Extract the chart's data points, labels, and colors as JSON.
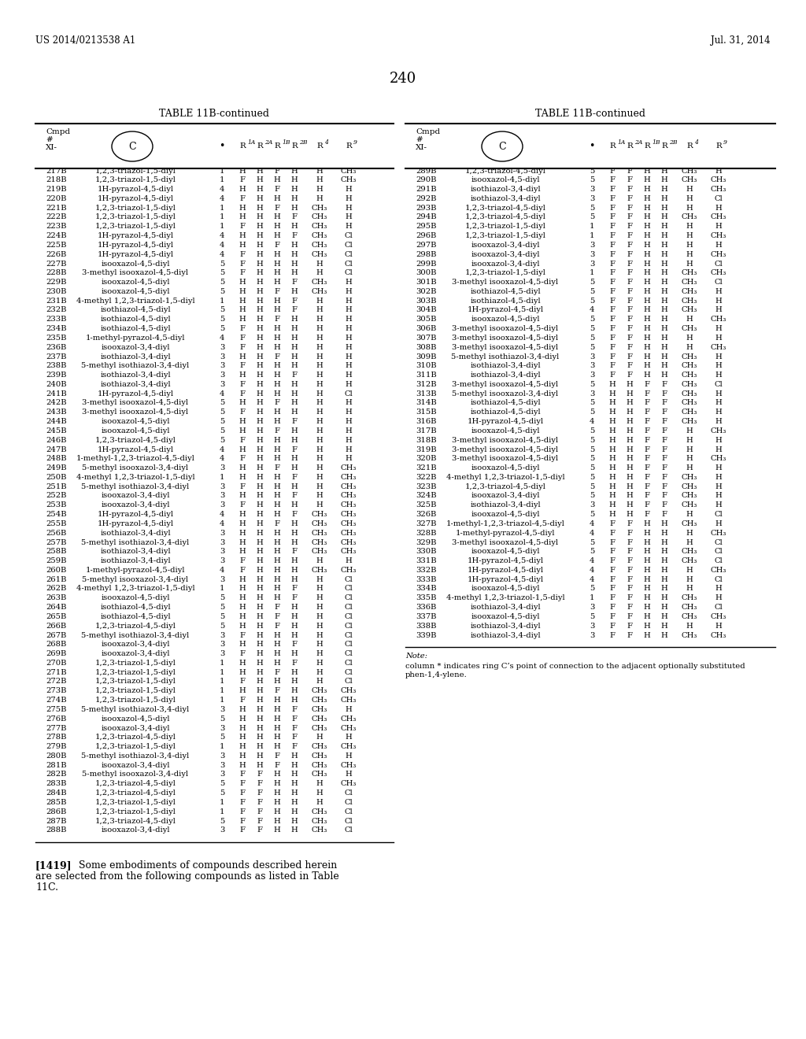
{
  "header_left": "US 2014/0213538 A1",
  "header_right": "Jul. 31, 2014",
  "page_number": "240",
  "table_title": "TABLE 11B-continued",
  "left_table": [
    [
      "217B",
      "1,2,3-triazol-1,5-diyl",
      "1",
      "H",
      "H",
      "F",
      "H",
      "H",
      "CH₃"
    ],
    [
      "218B",
      "1,2,3-triazol-1,5-diyl",
      "1",
      "F",
      "H",
      "H",
      "H",
      "H",
      "CH₃"
    ],
    [
      "219B",
      "1H-pyrazol-4,5-diyl",
      "4",
      "H",
      "H",
      "F",
      "H",
      "H",
      "H"
    ],
    [
      "220B",
      "1H-pyrazol-4,5-diyl",
      "4",
      "F",
      "H",
      "H",
      "H",
      "H",
      "H"
    ],
    [
      "221B",
      "1,2,3-triazol-1,5-diyl",
      "1",
      "H",
      "H",
      "F",
      "H",
      "CH₃",
      "H"
    ],
    [
      "222B",
      "1,2,3-triazol-1,5-diyl",
      "1",
      "H",
      "H",
      "H",
      "F",
      "CH₃",
      "H"
    ],
    [
      "223B",
      "1,2,3-triazol-1,5-diyl",
      "1",
      "F",
      "H",
      "H",
      "H",
      "CH₃",
      "H"
    ],
    [
      "224B",
      "1H-pyrazol-4,5-diyl",
      "4",
      "H",
      "H",
      "H",
      "F",
      "CH₃",
      "Cl"
    ],
    [
      "225B",
      "1H-pyrazol-4,5-diyl",
      "4",
      "H",
      "H",
      "F",
      "H",
      "CH₃",
      "Cl"
    ],
    [
      "226B",
      "1H-pyrazol-4,5-diyl",
      "4",
      "F",
      "H",
      "H",
      "H",
      "CH₃",
      "Cl"
    ],
    [
      "227B",
      "isooxazol-4,5-diyl",
      "5",
      "F",
      "H",
      "H",
      "H",
      "H",
      "Cl"
    ],
    [
      "228B",
      "3-methyl isooxazol-4,5-diyl",
      "5",
      "F",
      "H",
      "H",
      "H",
      "H",
      "Cl"
    ],
    [
      "229B",
      "isooxazol-4,5-diyl",
      "5",
      "H",
      "H",
      "H",
      "F",
      "CH₃",
      "H"
    ],
    [
      "230B",
      "isooxazol-4,5-diyl",
      "5",
      "H",
      "H",
      "F",
      "H",
      "CH₃",
      "H"
    ],
    [
      "231B",
      "4-methyl 1,2,3-triazol-1,5-diyl",
      "1",
      "H",
      "H",
      "H",
      "F",
      "H",
      "H"
    ],
    [
      "232B",
      "isothiazol-4,5-diyl",
      "5",
      "H",
      "H",
      "H",
      "F",
      "H",
      "H"
    ],
    [
      "233B",
      "isothiazol-4,5-diyl",
      "5",
      "H",
      "H",
      "F",
      "H",
      "H",
      "H"
    ],
    [
      "234B",
      "isothiazol-4,5-diyl",
      "5",
      "F",
      "H",
      "H",
      "H",
      "H",
      "H"
    ],
    [
      "235B",
      "1-methyl-pyrazol-4,5-diyl",
      "4",
      "F",
      "H",
      "H",
      "H",
      "H",
      "H"
    ],
    [
      "236B",
      "isooxazol-3,4-diyl",
      "3",
      "F",
      "H",
      "H",
      "H",
      "H",
      "H"
    ],
    [
      "237B",
      "isothiazol-3,4-diyl",
      "3",
      "H",
      "H",
      "F",
      "H",
      "H",
      "H"
    ],
    [
      "238B",
      "5-methyl isothiazol-3,4-diyl",
      "3",
      "F",
      "H",
      "H",
      "H",
      "H",
      "H"
    ],
    [
      "239B",
      "isothiazol-3,4-diyl",
      "3",
      "H",
      "H",
      "H",
      "F",
      "H",
      "H"
    ],
    [
      "240B",
      "isothiazol-3,4-diyl",
      "3",
      "F",
      "H",
      "H",
      "H",
      "H",
      "H"
    ],
    [
      "241B",
      "1H-pyrazol-4,5-diyl",
      "4",
      "F",
      "H",
      "H",
      "H",
      "H",
      "Cl"
    ],
    [
      "242B",
      "3-methyl isooxazol-4,5-diyl",
      "5",
      "H",
      "H",
      "F",
      "H",
      "H",
      "H"
    ],
    [
      "243B",
      "3-methyl isooxazol-4,5-diyl",
      "5",
      "F",
      "H",
      "H",
      "H",
      "H",
      "H"
    ],
    [
      "244B",
      "isooxazol-4,5-diyl",
      "5",
      "H",
      "H",
      "H",
      "F",
      "H",
      "H"
    ],
    [
      "245B",
      "isooxazol-4,5-diyl",
      "5",
      "H",
      "H",
      "F",
      "H",
      "H",
      "H"
    ],
    [
      "246B",
      "1,2,3-triazol-4,5-diyl",
      "5",
      "F",
      "H",
      "H",
      "H",
      "H",
      "H"
    ],
    [
      "247B",
      "1H-pyrazol-4,5-diyl",
      "4",
      "H",
      "H",
      "H",
      "F",
      "H",
      "H"
    ],
    [
      "248B",
      "1-methyl-1,2,3-triazol-4,5-diyl",
      "4",
      "F",
      "H",
      "H",
      "H",
      "H",
      "H"
    ],
    [
      "249B",
      "5-methyl isooxazol-3,4-diyl",
      "3",
      "H",
      "H",
      "F",
      "H",
      "H",
      "CH₃"
    ],
    [
      "250B",
      "4-methyl 1,2,3-triazol-1,5-diyl",
      "1",
      "H",
      "H",
      "H",
      "F",
      "H",
      "CH₃"
    ],
    [
      "251B",
      "5-methyl isothiazol-3,4-diyl",
      "3",
      "F",
      "H",
      "H",
      "H",
      "H",
      "CH₃"
    ],
    [
      "252B",
      "isooxazol-3,4-diyl",
      "3",
      "H",
      "H",
      "H",
      "F",
      "H",
      "CH₃"
    ],
    [
      "253B",
      "isooxazol-3,4-diyl",
      "3",
      "F",
      "H",
      "H",
      "H",
      "H",
      "CH₃"
    ],
    [
      "254B",
      "1H-pyrazol-4,5-diyl",
      "4",
      "H",
      "H",
      "H",
      "F",
      "CH₃",
      "CH₃"
    ],
    [
      "255B",
      "1H-pyrazol-4,5-diyl",
      "4",
      "H",
      "H",
      "F",
      "H",
      "CH₃",
      "CH₃"
    ],
    [
      "256B",
      "isothiazol-3,4-diyl",
      "3",
      "H",
      "H",
      "H",
      "H",
      "CH₃",
      "CH₃"
    ],
    [
      "257B",
      "5-methyl isothiazol-3,4-diyl",
      "3",
      "H",
      "H",
      "H",
      "H",
      "CH₃",
      "CH₃"
    ],
    [
      "258B",
      "isothiazol-3,4-diyl",
      "3",
      "H",
      "H",
      "H",
      "F",
      "CH₃",
      "CH₃"
    ],
    [
      "259B",
      "isothiazol-3,4-diyl",
      "3",
      "F",
      "H",
      "H",
      "H",
      "H",
      "H"
    ],
    [
      "260B",
      "1-methyl-pyrazol-4,5-diyl",
      "4",
      "F",
      "H",
      "H",
      "H",
      "CH₃",
      "CH₃"
    ],
    [
      "261B",
      "5-methyl isooxazol-3,4-diyl",
      "3",
      "H",
      "H",
      "H",
      "H",
      "H",
      "Cl"
    ],
    [
      "262B",
      "4-methyl 1,2,3-triazol-1,5-diyl",
      "1",
      "H",
      "H",
      "H",
      "F",
      "H",
      "Cl"
    ],
    [
      "263B",
      "isooxazol-4,5-diyl",
      "5",
      "H",
      "H",
      "H",
      "F",
      "H",
      "Cl"
    ],
    [
      "264B",
      "isothiazol-4,5-diyl",
      "5",
      "H",
      "H",
      "F",
      "H",
      "H",
      "Cl"
    ],
    [
      "265B",
      "isothiazol-4,5-diyl",
      "5",
      "H",
      "H",
      "F",
      "H",
      "H",
      "Cl"
    ],
    [
      "266B",
      "1,2,3-triazol-4,5-diyl",
      "5",
      "H",
      "H",
      "F",
      "H",
      "H",
      "Cl"
    ],
    [
      "267B",
      "5-methyl isothiazol-3,4-diyl",
      "3",
      "F",
      "H",
      "H",
      "H",
      "H",
      "Cl"
    ],
    [
      "268B",
      "isooxazol-3,4-diyl",
      "3",
      "H",
      "H",
      "H",
      "F",
      "H",
      "Cl"
    ],
    [
      "269B",
      "isooxazol-3,4-diyl",
      "3",
      "F",
      "H",
      "H",
      "H",
      "H",
      "Cl"
    ],
    [
      "270B",
      "1,2,3-triazol-1,5-diyl",
      "1",
      "H",
      "H",
      "H",
      "F",
      "H",
      "Cl"
    ],
    [
      "271B",
      "1,2,3-triazol-1,5-diyl",
      "1",
      "H",
      "H",
      "F",
      "H",
      "H",
      "Cl"
    ],
    [
      "272B",
      "1,2,3-triazol-1,5-diyl",
      "1",
      "F",
      "H",
      "H",
      "H",
      "H",
      "Cl"
    ],
    [
      "273B",
      "1,2,3-triazol-1,5-diyl",
      "1",
      "H",
      "H",
      "F",
      "H",
      "CH₃",
      "CH₃"
    ],
    [
      "274B",
      "1,2,3-triazol-1,5-diyl",
      "1",
      "F",
      "H",
      "H",
      "H",
      "CH₃",
      "CH₃"
    ],
    [
      "275B",
      "5-methyl isothiazol-3,4-diyl",
      "3",
      "H",
      "H",
      "H",
      "F",
      "CH₃",
      "H"
    ],
    [
      "276B",
      "isooxazol-4,5-diyl",
      "5",
      "H",
      "H",
      "H",
      "F",
      "CH₃",
      "CH₃"
    ],
    [
      "277B",
      "isooxazol-3,4-diyl",
      "3",
      "H",
      "H",
      "H",
      "F",
      "CH₃",
      "CH₃"
    ],
    [
      "278B",
      "1,2,3-triazol-4,5-diyl",
      "5",
      "H",
      "H",
      "H",
      "F",
      "H",
      "H"
    ],
    [
      "279B",
      "1,2,3-triazol-1,5-diyl",
      "1",
      "H",
      "H",
      "H",
      "F",
      "CH₃",
      "CH₃"
    ],
    [
      "280B",
      "5-methyl isothiazol-3,4-diyl",
      "3",
      "H",
      "H",
      "F",
      "H",
      "CH₃",
      "H"
    ],
    [
      "281B",
      "isooxazol-3,4-diyl",
      "3",
      "H",
      "H",
      "F",
      "H",
      "CH₃",
      "CH₃"
    ],
    [
      "282B",
      "5-methyl isooxazol-3,4-diyl",
      "3",
      "F",
      "F",
      "H",
      "H",
      "CH₃",
      "H"
    ],
    [
      "283B",
      "1,2,3-triazol-4,5-diyl",
      "5",
      "F",
      "F",
      "H",
      "H",
      "H",
      "CH₃"
    ],
    [
      "284B",
      "1,2,3-triazol-4,5-diyl",
      "5",
      "F",
      "F",
      "H",
      "H",
      "H",
      "Cl"
    ],
    [
      "285B",
      "1,2,3-triazol-1,5-diyl",
      "1",
      "F",
      "F",
      "H",
      "H",
      "H",
      "Cl"
    ],
    [
      "286B",
      "1,2,3-triazol-1,5-diyl",
      "1",
      "F",
      "F",
      "H",
      "H",
      "CH₃",
      "Cl"
    ],
    [
      "287B",
      "1,2,3-triazol-4,5-diyl",
      "5",
      "F",
      "F",
      "H",
      "H",
      "CH₃",
      "Cl"
    ],
    [
      "288B",
      "isooxazol-3,4-diyl",
      "3",
      "F",
      "F",
      "H",
      "H",
      "CH₃",
      "Cl"
    ]
  ],
  "right_table": [
    [
      "289B",
      "1,2,3-triazol-4,5-diyl",
      "5",
      "F",
      "F",
      "H",
      "H",
      "CH₃",
      "H"
    ],
    [
      "290B",
      "isooxazol-4,5-diyl",
      "5",
      "F",
      "F",
      "H",
      "H",
      "CH₃",
      "CH₃"
    ],
    [
      "291B",
      "isothiazol-3,4-diyl",
      "3",
      "F",
      "F",
      "H",
      "H",
      "H",
      "CH₃"
    ],
    [
      "292B",
      "isothiazol-3,4-diyl",
      "3",
      "F",
      "F",
      "H",
      "H",
      "H",
      "Cl"
    ],
    [
      "293B",
      "1,2,3-triazol-4,5-diyl",
      "5",
      "F",
      "F",
      "H",
      "H",
      "H",
      "H"
    ],
    [
      "294B",
      "1,2,3-triazol-4,5-diyl",
      "5",
      "F",
      "F",
      "H",
      "H",
      "CH₃",
      "CH₃"
    ],
    [
      "295B",
      "1,2,3-triazol-1,5-diyl",
      "1",
      "F",
      "F",
      "H",
      "H",
      "H",
      "H"
    ],
    [
      "296B",
      "1,2,3-triazol-1,5-diyl",
      "1",
      "F",
      "F",
      "H",
      "H",
      "H",
      "CH₃"
    ],
    [
      "297B",
      "isooxazol-3,4-diyl",
      "3",
      "F",
      "F",
      "H",
      "H",
      "H",
      "H"
    ],
    [
      "298B",
      "isooxazol-3,4-diyl",
      "3",
      "F",
      "F",
      "H",
      "H",
      "H",
      "CH₃"
    ],
    [
      "299B",
      "isooxazol-3,4-diyl",
      "3",
      "F",
      "F",
      "H",
      "H",
      "H",
      "Cl"
    ],
    [
      "300B",
      "1,2,3-triazol-1,5-diyl",
      "1",
      "F",
      "F",
      "H",
      "H",
      "CH₃",
      "CH₃"
    ],
    [
      "301B",
      "3-methyl isooxazol-4,5-diyl",
      "5",
      "F",
      "F",
      "H",
      "H",
      "CH₃",
      "Cl"
    ],
    [
      "302B",
      "isothiazol-4,5-diyl",
      "5",
      "F",
      "F",
      "H",
      "H",
      "CH₃",
      "H"
    ],
    [
      "303B",
      "isothiazol-4,5-diyl",
      "5",
      "F",
      "F",
      "H",
      "H",
      "CH₃",
      "H"
    ],
    [
      "304B",
      "1H-pyrazol-4,5-diyl",
      "4",
      "F",
      "F",
      "H",
      "H",
      "CH₃",
      "H"
    ],
    [
      "305B",
      "isooxazol-4,5-diyl",
      "5",
      "F",
      "F",
      "H",
      "H",
      "H",
      "CH₃"
    ],
    [
      "306B",
      "3-methyl isooxazol-4,5-diyl",
      "5",
      "F",
      "F",
      "H",
      "H",
      "CH₃",
      "H"
    ],
    [
      "307B",
      "3-methyl isooxazol-4,5-diyl",
      "5",
      "F",
      "F",
      "H",
      "H",
      "H",
      "H"
    ],
    [
      "308B",
      "3-methyl isooxazol-4,5-diyl",
      "5",
      "F",
      "F",
      "H",
      "H",
      "H",
      "CH₃"
    ],
    [
      "309B",
      "5-methyl isothiazol-3,4-diyl",
      "3",
      "F",
      "F",
      "H",
      "H",
      "CH₃",
      "H"
    ],
    [
      "310B",
      "isothiazol-3,4-diyl",
      "3",
      "F",
      "F",
      "H",
      "H",
      "CH₃",
      "H"
    ],
    [
      "311B",
      "isothiazol-3,4-diyl",
      "3",
      "F",
      "F",
      "H",
      "H",
      "CH₃",
      "H"
    ],
    [
      "312B",
      "3-methyl isooxazol-4,5-diyl",
      "5",
      "H",
      "H",
      "F",
      "F",
      "CH₃",
      "Cl"
    ],
    [
      "313B",
      "5-methyl isooxazol-3,4-diyl",
      "3",
      "H",
      "H",
      "F",
      "F",
      "CH₃",
      "H"
    ],
    [
      "314B",
      "isothiazol-4,5-diyl",
      "5",
      "H",
      "H",
      "F",
      "F",
      "CH₃",
      "H"
    ],
    [
      "315B",
      "isothiazol-4,5-diyl",
      "5",
      "H",
      "H",
      "F",
      "F",
      "CH₃",
      "H"
    ],
    [
      "316B",
      "1H-pyrazol-4,5-diyl",
      "4",
      "H",
      "H",
      "F",
      "F",
      "CH₃",
      "H"
    ],
    [
      "317B",
      "isooxazol-4,5-diyl",
      "5",
      "H",
      "H",
      "F",
      "F",
      "H",
      "CH₃"
    ],
    [
      "318B",
      "3-methyl isooxazol-4,5-diyl",
      "5",
      "H",
      "H",
      "F",
      "F",
      "H",
      "H"
    ],
    [
      "319B",
      "3-methyl isooxazol-4,5-diyl",
      "5",
      "H",
      "H",
      "F",
      "F",
      "H",
      "H"
    ],
    [
      "320B",
      "3-methyl isooxazol-4,5-diyl",
      "5",
      "H",
      "H",
      "F",
      "F",
      "H",
      "CH₃"
    ],
    [
      "321B",
      "isooxazol-4,5-diyl",
      "5",
      "H",
      "H",
      "F",
      "F",
      "H",
      "H"
    ],
    [
      "322B",
      "4-methyl 1,2,3-triazol-1,5-diyl",
      "5",
      "H",
      "H",
      "F",
      "F",
      "CH₃",
      "H"
    ],
    [
      "323B",
      "1,2,3-triazol-4,5-diyl",
      "5",
      "H",
      "H",
      "F",
      "F",
      "CH₃",
      "H"
    ],
    [
      "324B",
      "isooxazol-3,4-diyl",
      "5",
      "H",
      "H",
      "F",
      "F",
      "CH₃",
      "H"
    ],
    [
      "325B",
      "isothiazol-3,4-diyl",
      "3",
      "H",
      "H",
      "F",
      "F",
      "CH₃",
      "H"
    ],
    [
      "326B",
      "isooxazol-4,5-diyl",
      "5",
      "H",
      "H",
      "F",
      "F",
      "H",
      "Cl"
    ],
    [
      "327B",
      "1-methyl-1,2,3-triazol-4,5-diyl",
      "4",
      "F",
      "F",
      "H",
      "H",
      "CH₃",
      "H"
    ],
    [
      "328B",
      "1-methyl-pyrazol-4,5-diyl",
      "4",
      "F",
      "F",
      "H",
      "H",
      "H",
      "CH₃"
    ],
    [
      "329B",
      "3-methyl isooxazol-4,5-diyl",
      "5",
      "F",
      "F",
      "H",
      "H",
      "H",
      "Cl"
    ],
    [
      "330B",
      "isooxazol-4,5-diyl",
      "5",
      "F",
      "F",
      "H",
      "H",
      "CH₃",
      "Cl"
    ],
    [
      "331B",
      "1H-pyrazol-4,5-diyl",
      "4",
      "F",
      "F",
      "H",
      "H",
      "CH₃",
      "Cl"
    ],
    [
      "332B",
      "1H-pyrazol-4,5-diyl",
      "4",
      "F",
      "F",
      "H",
      "H",
      "H",
      "CH₃"
    ],
    [
      "333B",
      "1H-pyrazol-4,5-diyl",
      "4",
      "F",
      "F",
      "H",
      "H",
      "H",
      "Cl"
    ],
    [
      "334B",
      "isooxazol-4,5-diyl",
      "5",
      "F",
      "F",
      "H",
      "H",
      "H",
      "H"
    ],
    [
      "335B",
      "4-methyl 1,2,3-triazol-1,5-diyl",
      "1",
      "F",
      "F",
      "H",
      "H",
      "CH₃",
      "H"
    ],
    [
      "336B",
      "isothiazol-3,4-diyl",
      "3",
      "F",
      "F",
      "H",
      "H",
      "CH₃",
      "Cl"
    ],
    [
      "337B",
      "isooxazol-4,5-diyl",
      "5",
      "F",
      "F",
      "H",
      "H",
      "CH₃",
      "CH₃"
    ],
    [
      "338B",
      "isothiazol-3,4-diyl",
      "3",
      "F",
      "F",
      "H",
      "H",
      "H",
      "H"
    ],
    [
      "339B",
      "isothiazol-3,4-diyl",
      "3",
      "F",
      "F",
      "H",
      "H",
      "CH₃",
      "CH₃"
    ]
  ]
}
